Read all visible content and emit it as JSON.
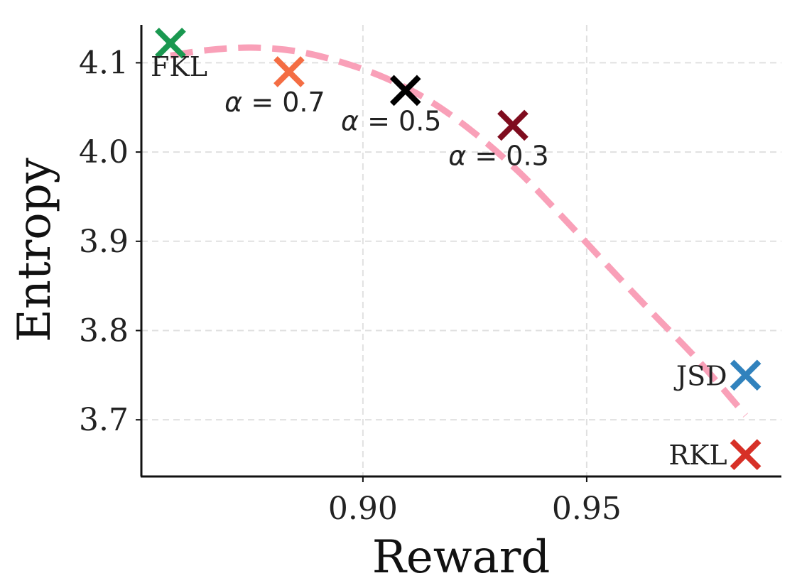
{
  "chart_data": {
    "type": "scatter",
    "title": "",
    "xlabel": "Reward",
    "ylabel": "Entropy",
    "xlim": [
      0.8505,
      0.9935
    ],
    "ylim": [
      3.6365,
      4.1425
    ],
    "xticks": [
      0.9,
      0.95
    ],
    "xtick_labels": [
      "0.90",
      "0.95"
    ],
    "yticks": [
      3.7,
      3.8,
      3.9,
      4.0,
      4.1
    ],
    "ytick_labels": [
      "3.7",
      "3.8",
      "3.9",
      "4.0",
      "4.1"
    ],
    "grid": true,
    "points": [
      {
        "label": "FKL",
        "x": 0.857,
        "y": 4.122,
        "color": "#1a9850",
        "label_pos": "below-right"
      },
      {
        "label": "α = 0.7",
        "x": 0.8835,
        "y": 4.09,
        "color": "#f46d43",
        "label_pos": "below"
      },
      {
        "label": "α = 0.5",
        "x": 0.9095,
        "y": 4.069,
        "color": "#000000",
        "label_pos": "below"
      },
      {
        "label": "α = 0.3",
        "x": 0.9335,
        "y": 4.03,
        "color": "#7f0c1e",
        "label_pos": "below"
      },
      {
        "label": "JSD",
        "x": 0.9855,
        "y": 3.75,
        "color": "#3182bd",
        "label_pos": "left"
      },
      {
        "label": "RKL",
        "x": 0.9855,
        "y": 3.661,
        "color": "#d73027",
        "label_pos": "left"
      }
    ],
    "trend_curve": {
      "style": "dashed",
      "color": "#f9a0b8",
      "x": [
        0.857,
        0.865,
        0.875,
        0.885,
        0.895,
        0.905,
        0.915,
        0.925,
        0.935,
        0.945,
        0.955,
        0.965,
        0.975,
        0.9855
      ],
      "y": [
        4.108,
        4.114,
        4.117,
        4.113,
        4.101,
        4.083,
        4.057,
        4.021,
        3.977,
        3.925,
        3.871,
        3.818,
        3.766,
        3.705
      ]
    }
  }
}
